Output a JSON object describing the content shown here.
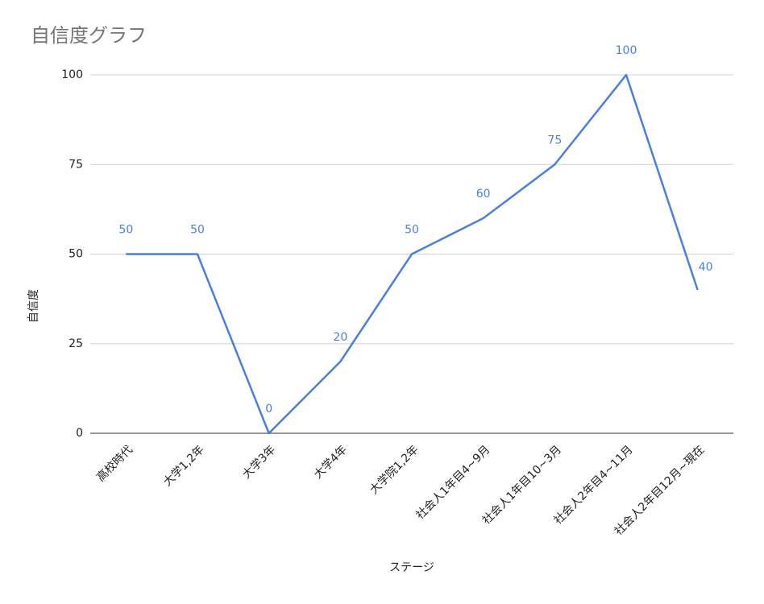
{
  "chart_data": {
    "type": "line",
    "title": "自信度グラフ",
    "x_label": "ステージ",
    "y_label": "自信度",
    "categories": [
      "高校時代",
      "大学1,2年",
      "大学3年",
      "大学4年",
      "大学院1,2年",
      "社会人1年目4~9月",
      "社会人1年目10~3月",
      "社会人2年目4~11月",
      "社会人2年目12月~現在"
    ],
    "values": [
      50,
      50,
      0,
      20,
      50,
      60,
      75,
      100,
      40
    ],
    "color": "#4a7fe0",
    "ylim": [
      0,
      100
    ],
    "yticks": [
      0,
      25,
      50,
      75,
      100
    ],
    "grid": true,
    "data_labels": true
  }
}
